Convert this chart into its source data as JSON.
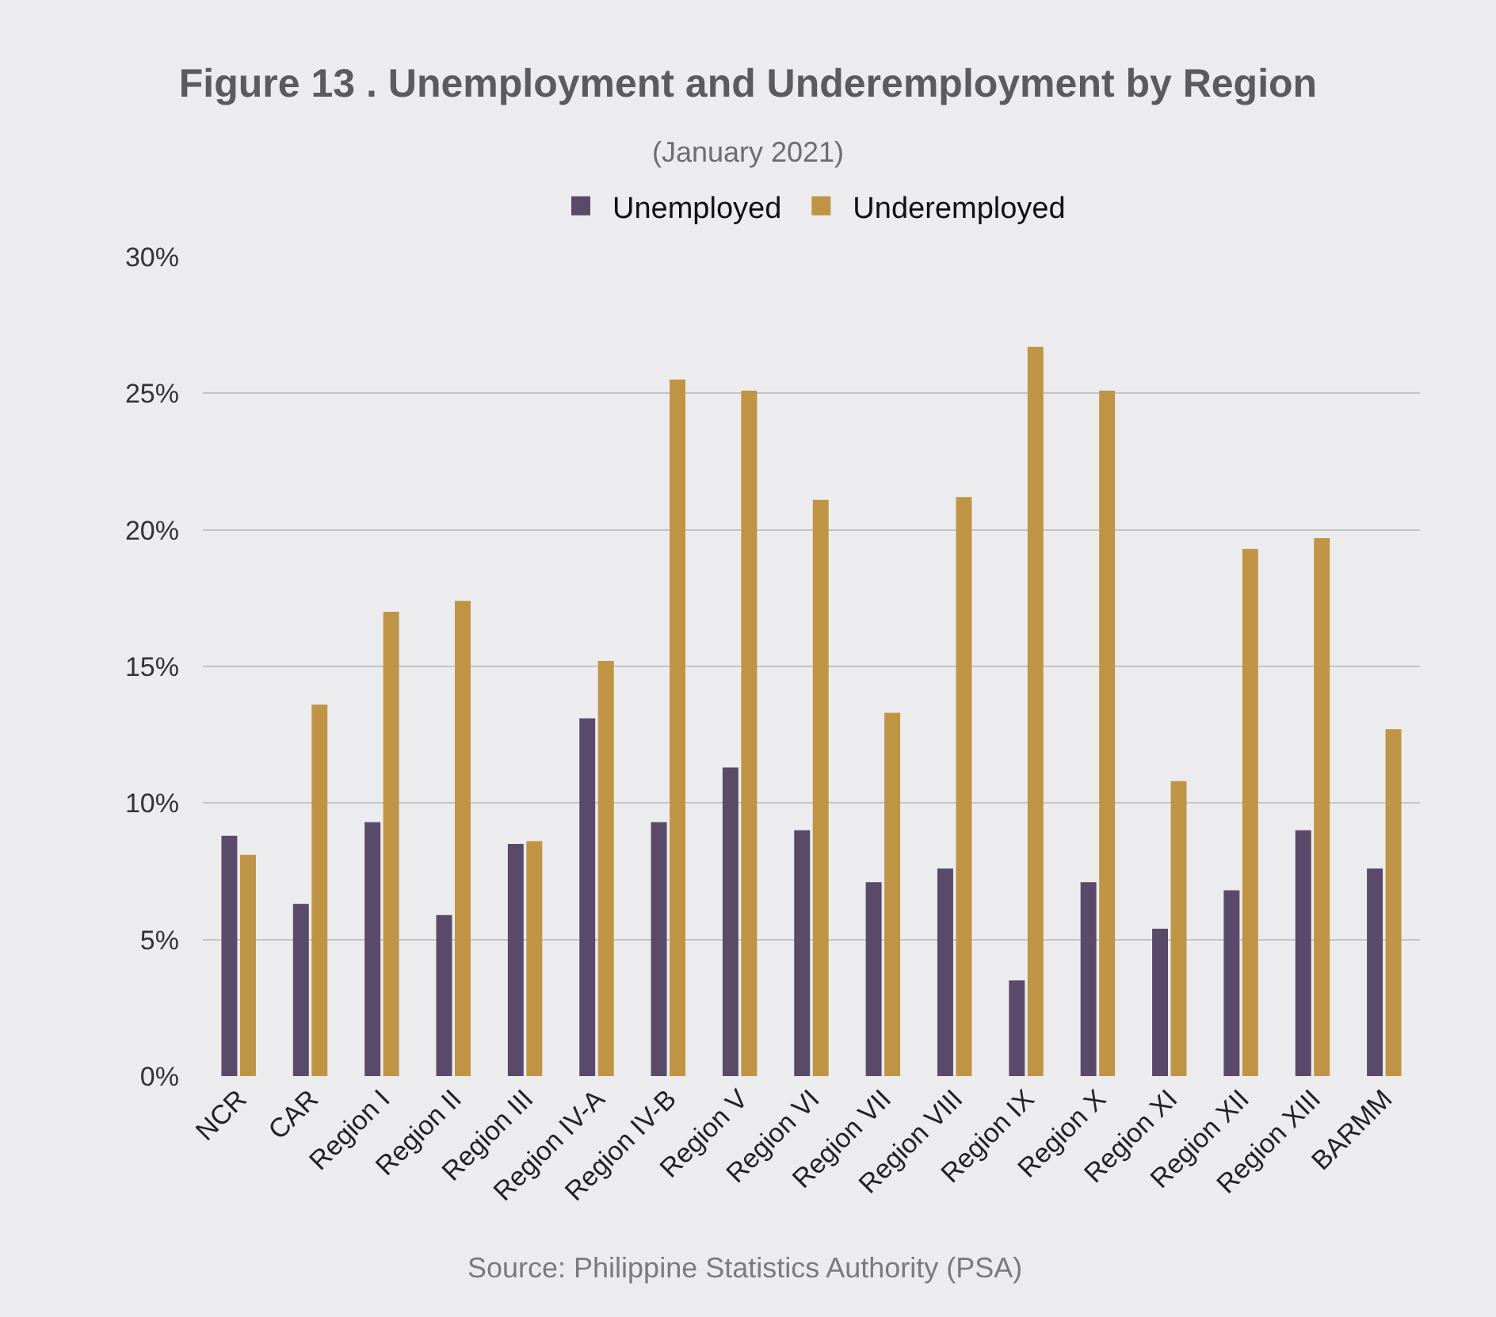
{
  "chart_data": {
    "type": "bar",
    "title": "Figure 13 . Unemployment and Underemployment by Region",
    "subtitle": "(January 2021)",
    "categories": [
      "NCR",
      "CAR",
      "Region I",
      "Region II",
      "Region III",
      "Region IV-A",
      "Region IV-B",
      "Region V",
      "Region VI",
      "Region VII",
      "Region VIII",
      "Region IX",
      "Region X",
      "Region XI",
      "Region XII",
      "Region XIII",
      "BARMM"
    ],
    "series": [
      {
        "name": "Unemployed",
        "color": "#5a4a69",
        "values": [
          8.8,
          6.3,
          9.3,
          5.9,
          8.5,
          13.1,
          9.3,
          11.3,
          9.0,
          7.1,
          7.6,
          3.5,
          7.1,
          5.4,
          6.8,
          9.0,
          7.6
        ]
      },
      {
        "name": "Underemployed",
        "color": "#c09445",
        "values": [
          8.1,
          13.6,
          17.0,
          17.4,
          8.6,
          15.2,
          25.5,
          25.1,
          21.1,
          13.3,
          21.2,
          26.7,
          25.1,
          10.8,
          19.3,
          19.7,
          12.7
        ]
      }
    ],
    "ylim": [
      0,
      30
    ],
    "yticks": [
      {
        "value": 0,
        "label": "0%"
      },
      {
        "value": 5,
        "label": "5%"
      },
      {
        "value": 10,
        "label": "10%"
      },
      {
        "value": 15,
        "label": "15%"
      },
      {
        "value": 20,
        "label": "20%"
      },
      {
        "value": 25,
        "label": "25%"
      },
      {
        "value": 30,
        "label": "30%"
      }
    ],
    "grid": "y",
    "legend": "top",
    "annotations": [
      "Source: Philippine Statistics Authority (PSA)"
    ]
  }
}
